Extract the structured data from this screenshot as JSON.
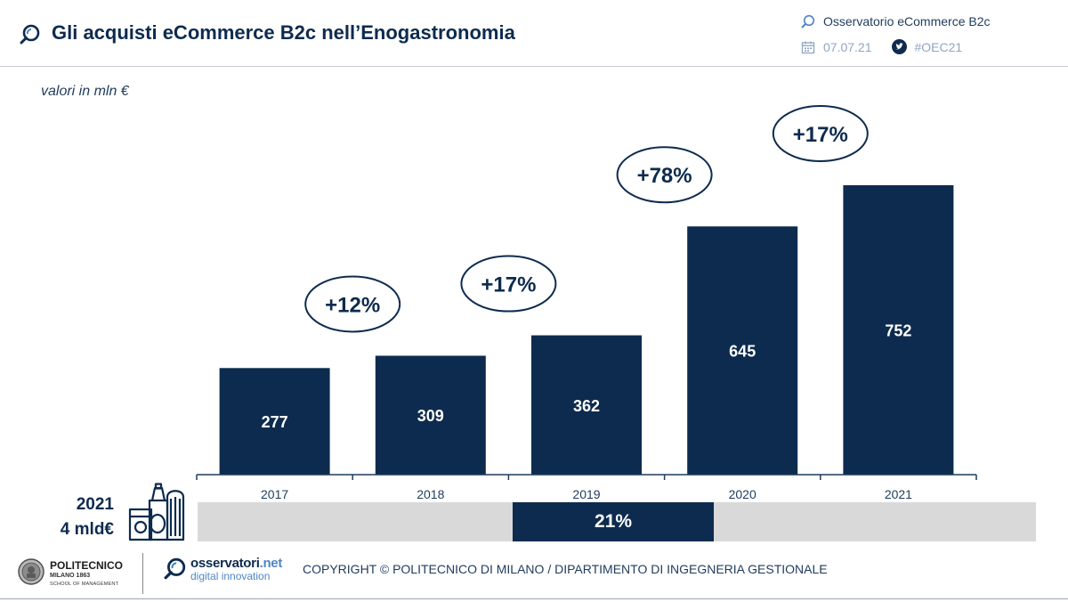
{
  "header": {
    "title": "Gli acquisti eCommerce B2c nell’Enogastronomia",
    "brand": "Osservatorio eCommerce B2c",
    "date": "07.07.21",
    "hashtag": "#OEC21"
  },
  "subtitle": "valori in mln €",
  "chart_data": {
    "type": "bar",
    "title": "Gli acquisti eCommerce B2c nell’Enogastronomia",
    "ylabel": "valori in mln €",
    "categories": [
      "2017",
      "2018",
      "2019",
      "2020",
      "2021"
    ],
    "values": [
      277,
      309,
      362,
      645,
      752
    ],
    "value_labels": [
      "277",
      "309",
      "362",
      "645",
      "752"
    ],
    "growth_labels": [
      "+12%",
      "+17%",
      "+78%",
      "+17%"
    ],
    "ylim": [
      0,
      850
    ],
    "grid": false,
    "bar_color": "#0d2b4e"
  },
  "share": {
    "year": "2021",
    "total": "4 mld€",
    "percent_label": "21%",
    "percent_value": 21
  },
  "footer": {
    "polimi_name": "POLITECNICO",
    "polimi_sub1": "MILANO 1863",
    "polimi_sub2": "SCHOOL OF MANAGEMENT",
    "oss_name_a": "osservatori",
    "oss_name_b": ".net",
    "oss_sub": "digital innovation",
    "copyright": "COPYRIGHT © POLITECNICO DI MILANO / DIPARTIMENTO DI INGEGNERIA GESTIONALE"
  },
  "colors": {
    "navy": "#0d2b4e",
    "light_blue": "#4f86c4",
    "grey_bar": "#d9d9d9"
  }
}
